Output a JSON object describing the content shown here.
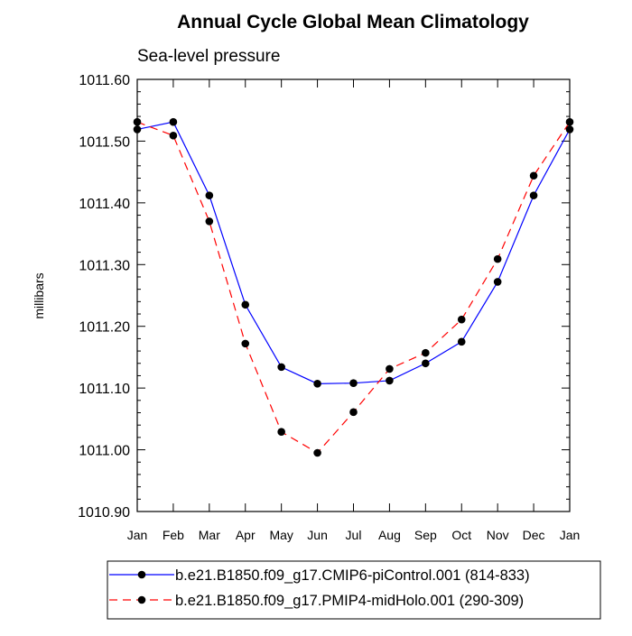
{
  "chart_data": {
    "type": "line",
    "title": "Annual Cycle Global Mean Climatology",
    "subtitle": "Sea-level pressure",
    "ylabel": "millibars",
    "xlabel": "",
    "categories": [
      "Jan",
      "Feb",
      "Mar",
      "Apr",
      "May",
      "Jun",
      "Jul",
      "Aug",
      "Sep",
      "Oct",
      "Nov",
      "Dec",
      "Jan"
    ],
    "ylim": [
      1010.9,
      1011.6
    ],
    "yticks": [
      "1010.90",
      "1011.00",
      "1011.10",
      "1011.20",
      "1011.30",
      "1011.40",
      "1011.50",
      "1011.60"
    ],
    "grid": false,
    "legend_position": "bottom",
    "series": [
      {
        "name": "b.e21.B1850.f09_g17.CMIP6-piControl.001 (814-833)",
        "color": "#0000ff",
        "dash": "solid",
        "values": [
          1011.519,
          1011.531,
          1011.412,
          1011.235,
          1011.134,
          1011.107,
          1011.108,
          1011.112,
          1011.14,
          1011.175,
          1011.272,
          1011.412,
          1011.519
        ]
      },
      {
        "name": "b.e21.B1850.f09_g17.PMIP4-midHolo.001 (290-309)",
        "color": "#ff0000",
        "dash": "dashed",
        "values": [
          1011.531,
          1011.509,
          1011.37,
          1011.172,
          1011.029,
          1010.995,
          1011.061,
          1011.131,
          1011.157,
          1011.211,
          1011.309,
          1011.444,
          1011.531
        ]
      }
    ]
  }
}
